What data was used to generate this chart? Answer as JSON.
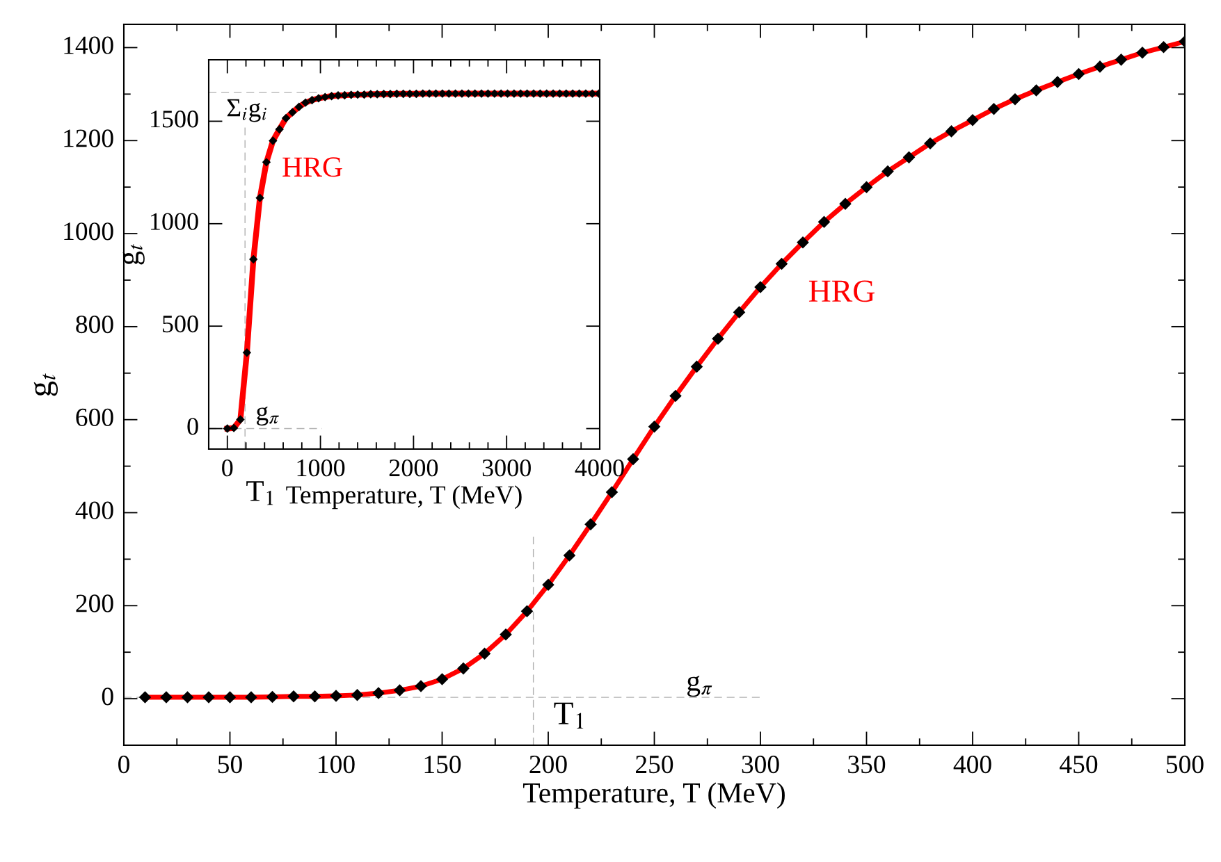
{
  "chart_data": [
    {
      "type": "line",
      "xlabel": "Temperature, T (MeV)",
      "ylabel": "g$_{t}$",
      "x": [
        10,
        20,
        30,
        40,
        50,
        60,
        70,
        80,
        90,
        100,
        110,
        120,
        130,
        140,
        150,
        160,
        170,
        180,
        190,
        200,
        210,
        220,
        230,
        240,
        250,
        260,
        270,
        280,
        290,
        300,
        310,
        320,
        330,
        340,
        350,
        360,
        370,
        380,
        390,
        400,
        410,
        420,
        430,
        440,
        450,
        460,
        470,
        480,
        490,
        500
      ],
      "series": [
        {
          "color": "#ff0000",
          "marker": "none",
          "values": [
            3,
            3,
            3,
            3,
            3,
            3,
            4,
            5,
            5,
            6,
            8,
            12,
            18,
            27,
            42,
            65,
            97,
            138,
            188,
            245,
            308,
            375,
            444,
            515,
            585,
            651,
            714,
            774,
            831,
            885,
            935,
            981,
            1025,
            1064,
            1100,
            1134,
            1164,
            1194,
            1220,
            1244,
            1268,
            1289,
            1308,
            1326,
            1343,
            1359,
            1374,
            1389,
            1401,
            1413
          ]
        },
        {
          "type": "scatter",
          "color": "#000000",
          "marker": "diamond",
          "values": [
            3,
            3,
            3,
            3,
            3,
            3,
            4,
            5,
            5,
            6,
            8,
            12,
            18,
            27,
            42,
            65,
            97,
            138,
            188,
            245,
            308,
            375,
            444,
            515,
            585,
            651,
            714,
            774,
            831,
            885,
            935,
            981,
            1025,
            1064,
            1100,
            1134,
            1164,
            1194,
            1220,
            1244,
            1268,
            1289,
            1308,
            1326,
            1343,
            1359,
            1374,
            1389,
            1401,
            1413
          ]
        }
      ],
      "xlim": [
        0,
        500
      ],
      "xticks": [
        0,
        50,
        100,
        150,
        200,
        250,
        300,
        350,
        400,
        450,
        500
      ],
      "ylim": [
        -100,
        1450
      ],
      "yticks": [
        0,
        200,
        400,
        600,
        800,
        1000,
        1200,
        1400
      ],
      "ref_lines": [
        {
          "axis": "y",
          "value": 3,
          "label": "g$_{π}$",
          "color": "#b0b0b0",
          "line_style": "dashed"
        },
        {
          "axis": "x",
          "value": 193,
          "label": "T$_{1}$",
          "color": "#b0b0b0",
          "line_style": "dashed"
        }
      ],
      "annotations": [
        "HRG"
      ],
      "grid": false,
      "legend": false
    },
    {
      "type": "line",
      "xlabel": "Temperature, T (MeV)",
      "ylabel": "g$_{t}$",
      "x": [
        0,
        70,
        140,
        210,
        280,
        350,
        420,
        490,
        560,
        630,
        700,
        770,
        840,
        910,
        980,
        1050,
        1120,
        1190,
        1260,
        1330,
        1400,
        1470,
        1540,
        1610,
        1680,
        1750,
        1820,
        1890,
        1960,
        2030,
        2100,
        2170,
        2240,
        2310,
        2380,
        2450,
        2520,
        2590,
        2660,
        2730,
        2800,
        2870,
        2940,
        3010,
        3080,
        3150,
        3220,
        3290,
        3360,
        3430,
        3500,
        3570,
        3640,
        3710,
        3780,
        3850,
        3920,
        3990
      ],
      "series": [
        {
          "color": "#ff0000",
          "marker": "none",
          "values": [
            0,
            3,
            44,
            371,
            826,
            1126,
            1300,
            1405,
            1461,
            1515,
            1544,
            1570,
            1591,
            1603,
            1612,
            1618,
            1623,
            1626,
            1627,
            1629,
            1630,
            1630,
            1632,
            1632,
            1633,
            1633,
            1634,
            1634,
            1634,
            1634,
            1635,
            1635,
            1635,
            1635,
            1635,
            1635,
            1635,
            1635,
            1635,
            1635,
            1635,
            1635,
            1635,
            1635,
            1635,
            1635,
            1635,
            1635,
            1635,
            1635,
            1635,
            1635,
            1635,
            1635,
            1635,
            1635,
            1635,
            1635
          ]
        },
        {
          "type": "scatter",
          "color": "#000000",
          "marker": "diamond",
          "values": [
            0,
            3,
            44,
            371,
            826,
            1126,
            1300,
            1405,
            1461,
            1515,
            1544,
            1570,
            1591,
            1603,
            1612,
            1618,
            1623,
            1626,
            1627,
            1629,
            1630,
            1630,
            1632,
            1632,
            1633,
            1633,
            1634,
            1634,
            1634,
            1634,
            1635,
            1635,
            1635,
            1635,
            1635,
            1635,
            1635,
            1635,
            1635,
            1635,
            1635,
            1635,
            1635,
            1635,
            1635,
            1635,
            1635,
            1635,
            1635,
            1635,
            1635,
            1635,
            1635,
            1635,
            1635,
            1635,
            1635,
            1635
          ]
        }
      ],
      "xlim": [
        -200,
        4000
      ],
      "xticks": [
        0,
        1000,
        2000,
        3000,
        4000
      ],
      "ylim": [
        -100,
        1800
      ],
      "yticks": [
        0,
        500,
        1000,
        1500
      ],
      "ref_lines": [
        {
          "axis": "y",
          "value": 0,
          "label": "g$_{π}$",
          "color": "#b0b0b0",
          "line_style": "dashed"
        },
        {
          "axis": "x",
          "value": 190,
          "label": "T$_{1}$",
          "color": "#b0b0b0",
          "line_style": "dashed"
        },
        {
          "axis": "y",
          "value": 1640,
          "label": "Σ$_{i}$g$_{i}$",
          "color": "#b0b0b0",
          "line_style": "dashed"
        }
      ],
      "annotations": [
        "HRG"
      ],
      "grid": false,
      "legend": false
    }
  ]
}
